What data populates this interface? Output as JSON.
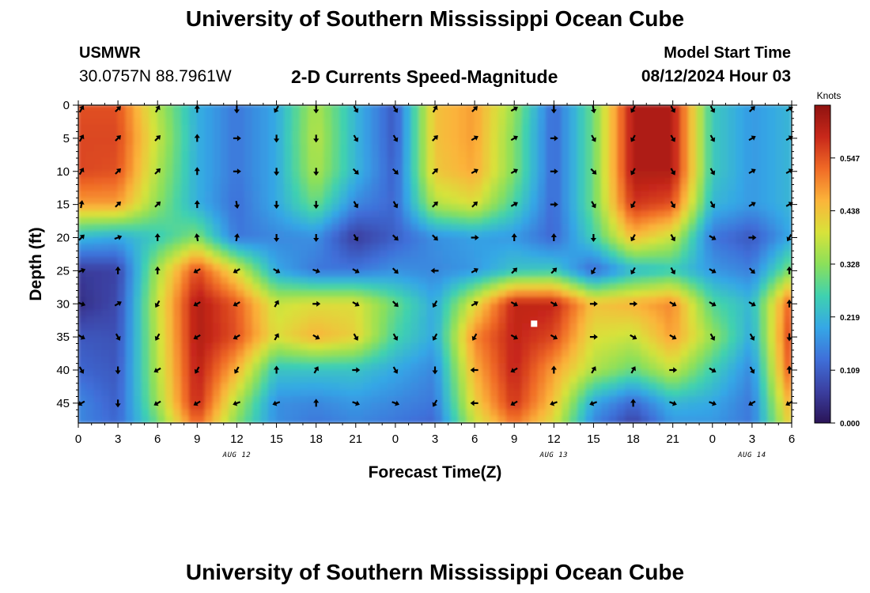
{
  "header": {
    "title": "University of Southern Mississippi Ocean Cube",
    "station": "USMWR",
    "coordinates": "30.0757N  88.7961W",
    "subtitle": "2-D Currents Speed-Magnitude",
    "model_start_label": "Model Start Time",
    "model_start_time": "08/12/2024 Hour 03"
  },
  "footer": {
    "title": "University of Southern Mississippi Ocean Cube"
  },
  "chart_data": {
    "type": "heatmap",
    "title": "2-D Currents Speed-Magnitude",
    "xlabel": "Forecast Time(Z)",
    "ylabel": "Depth (ft)",
    "x_unit": "hours since 00Z Aug 12",
    "xlim": [
      0,
      54
    ],
    "ylim": [
      0,
      48
    ],
    "x_ticks": [
      0,
      3,
      6,
      9,
      12,
      15,
      18,
      21,
      24,
      27,
      30,
      33,
      36,
      39,
      42,
      45,
      48,
      51,
      54
    ],
    "x_tick_labels": [
      "0",
      "3",
      "6",
      "9",
      "12",
      "15",
      "18",
      "21",
      "0",
      "3",
      "6",
      "9",
      "12",
      "15",
      "18",
      "21",
      "0",
      "3",
      "6"
    ],
    "y_ticks": [
      0,
      5,
      10,
      15,
      20,
      25,
      30,
      35,
      40,
      45
    ],
    "y_tick_labels": [
      "0",
      "5",
      "10",
      "15",
      "20",
      "25",
      "30",
      "35",
      "40",
      "45"
    ],
    "date_labels": [
      {
        "x": 12,
        "text": "AUG 12"
      },
      {
        "x": 36,
        "text": "AUG 13"
      },
      {
        "x": 51,
        "text": "AUG 14"
      }
    ],
    "colorbar": {
      "label": "Knots",
      "range": [
        0,
        0.656
      ],
      "ticks": [
        0.0,
        0.109,
        0.219,
        0.328,
        0.438,
        0.547
      ],
      "tick_labels": [
        "0.000",
        "0.109",
        "0.219",
        "0.328",
        "0.438",
        "0.547"
      ],
      "colormap": [
        "#2a1457",
        "#3b3fa0",
        "#3f6fd9",
        "#35a7e6",
        "#3fd1b0",
        "#8be05a",
        "#d8e23a",
        "#fbb43a",
        "#f06a26",
        "#c8281a",
        "#8f1210"
      ]
    },
    "speed_columns_hours": [
      0,
      3,
      6,
      9,
      12,
      15,
      18,
      21,
      24,
      27,
      30,
      33,
      36,
      39,
      42,
      45,
      48,
      51,
      54
    ],
    "speed_rows_depth_ft": [
      0,
      5,
      10,
      15,
      20,
      25,
      30,
      35,
      40,
      45,
      48
    ],
    "speed_knots": [
      [
        0.55,
        0.55,
        0.36,
        0.21,
        0.14,
        0.2,
        0.36,
        0.22,
        0.1,
        0.44,
        0.48,
        0.34,
        0.12,
        0.3,
        0.62,
        0.62,
        0.25,
        0.18,
        0.22
      ],
      [
        0.56,
        0.56,
        0.38,
        0.21,
        0.14,
        0.2,
        0.37,
        0.22,
        0.1,
        0.44,
        0.48,
        0.32,
        0.12,
        0.3,
        0.62,
        0.62,
        0.25,
        0.18,
        0.22
      ],
      [
        0.56,
        0.55,
        0.36,
        0.21,
        0.14,
        0.2,
        0.36,
        0.22,
        0.11,
        0.43,
        0.47,
        0.32,
        0.12,
        0.3,
        0.62,
        0.62,
        0.25,
        0.18,
        0.22
      ],
      [
        0.48,
        0.48,
        0.33,
        0.21,
        0.13,
        0.2,
        0.3,
        0.16,
        0.12,
        0.36,
        0.4,
        0.27,
        0.12,
        0.3,
        0.58,
        0.55,
        0.22,
        0.18,
        0.22
      ],
      [
        0.22,
        0.2,
        0.25,
        0.32,
        0.14,
        0.16,
        0.17,
        0.06,
        0.11,
        0.17,
        0.19,
        0.18,
        0.12,
        0.26,
        0.45,
        0.38,
        0.14,
        0.1,
        0.2
      ],
      [
        0.06,
        0.07,
        0.35,
        0.56,
        0.4,
        0.2,
        0.14,
        0.14,
        0.17,
        0.16,
        0.18,
        0.24,
        0.25,
        0.12,
        0.22,
        0.25,
        0.18,
        0.15,
        0.32
      ],
      [
        0.04,
        0.08,
        0.38,
        0.62,
        0.54,
        0.38,
        0.4,
        0.4,
        0.3,
        0.2,
        0.4,
        0.6,
        0.6,
        0.44,
        0.46,
        0.5,
        0.28,
        0.22,
        0.55
      ],
      [
        0.1,
        0.09,
        0.37,
        0.62,
        0.55,
        0.4,
        0.46,
        0.42,
        0.27,
        0.2,
        0.5,
        0.6,
        0.56,
        0.4,
        0.38,
        0.48,
        0.34,
        0.2,
        0.58
      ],
      [
        0.12,
        0.1,
        0.36,
        0.61,
        0.46,
        0.24,
        0.24,
        0.24,
        0.2,
        0.16,
        0.46,
        0.6,
        0.48,
        0.36,
        0.3,
        0.38,
        0.26,
        0.16,
        0.56
      ],
      [
        0.16,
        0.11,
        0.34,
        0.6,
        0.36,
        0.17,
        0.16,
        0.18,
        0.16,
        0.14,
        0.42,
        0.58,
        0.44,
        0.2,
        0.12,
        0.22,
        0.2,
        0.14,
        0.48
      ],
      [
        0.16,
        0.12,
        0.3,
        0.54,
        0.32,
        0.17,
        0.14,
        0.16,
        0.14,
        0.12,
        0.38,
        0.52,
        0.4,
        0.16,
        0.07,
        0.18,
        0.18,
        0.14,
        0.44
      ]
    ],
    "arrow_columns_hours": [
      0,
      3,
      6,
      9,
      12,
      15,
      18,
      21,
      24,
      27,
      30,
      33,
      36,
      39,
      42,
      45,
      48,
      51,
      54
    ],
    "arrow_rows_depth_ft": [
      0,
      5,
      10,
      15,
      20,
      25,
      30,
      35,
      40,
      45
    ],
    "direction_deg_math": [
      [
        60,
        45,
        60,
        90,
        -90,
        -120,
        -90,
        -60,
        -60,
        60,
        45,
        30,
        -90,
        -80,
        -120,
        -60,
        -60,
        45,
        30
      ],
      [
        60,
        45,
        45,
        90,
        0,
        -90,
        -90,
        -60,
        -60,
        45,
        30,
        30,
        0,
        -60,
        -120,
        -60,
        -60,
        30,
        30
      ],
      [
        60,
        45,
        45,
        90,
        0,
        -90,
        -90,
        -45,
        -45,
        45,
        30,
        30,
        0,
        -45,
        -120,
        -60,
        -60,
        30,
        30
      ],
      [
        80,
        45,
        45,
        90,
        -80,
        -90,
        -90,
        -60,
        -60,
        45,
        45,
        30,
        0,
        -60,
        -120,
        -60,
        -60,
        30,
        30
      ],
      [
        45,
        20,
        90,
        100,
        80,
        -90,
        -90,
        -60,
        -45,
        -45,
        0,
        90,
        90,
        -90,
        -120,
        -60,
        -30,
        0,
        -120
      ],
      [
        20,
        90,
        90,
        -150,
        -150,
        -30,
        -20,
        -30,
        -45,
        180,
        30,
        45,
        45,
        -120,
        -120,
        -60,
        -30,
        -45,
        90
      ],
      [
        -20,
        30,
        -120,
        -150,
        -150,
        60,
        0,
        -30,
        -45,
        -120,
        30,
        -30,
        -30,
        0,
        0,
        -30,
        -30,
        -30,
        90
      ],
      [
        -30,
        -60,
        -120,
        -150,
        -150,
        60,
        -30,
        -60,
        -60,
        -120,
        -120,
        -30,
        -30,
        0,
        -30,
        -30,
        -60,
        -60,
        -90
      ],
      [
        -60,
        -90,
        -150,
        -120,
        -120,
        90,
        60,
        0,
        -60,
        -90,
        180,
        -150,
        90,
        60,
        60,
        0,
        -30,
        -60,
        90
      ],
      [
        -150,
        -90,
        -150,
        -150,
        -160,
        -160,
        90,
        -20,
        -20,
        -120,
        180,
        -150,
        -160,
        -160,
        90,
        -20,
        -20,
        -150,
        -150
      ]
    ],
    "marker": {
      "x": 34.5,
      "y": 33,
      "color": "#ffffff"
    }
  }
}
